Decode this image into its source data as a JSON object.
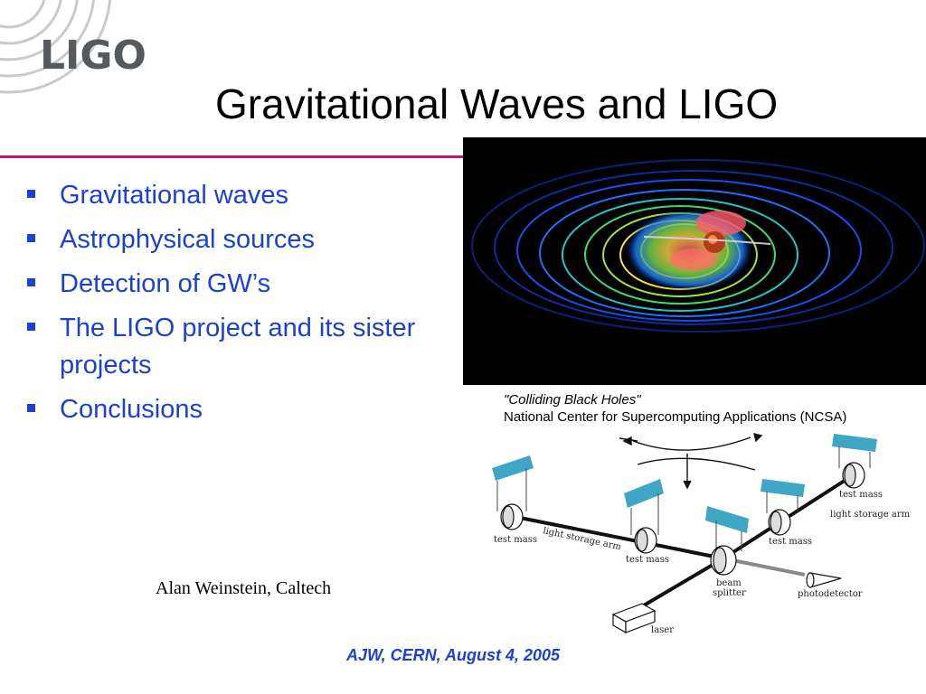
{
  "logo": {
    "text": "LIGO",
    "icon": "ligo-logo-arcs"
  },
  "title": "Gravitational Waves and LIGO",
  "bullets": [
    "Gravitational waves",
    "Astrophysical sources",
    "Detection of GW’s",
    "The LIGO project and its sister projects",
    "Conclusions"
  ],
  "image_caption": {
    "line1": "\"Colliding Black Holes\"",
    "line2": "National Center for Supercomputing Applications (NCSA)"
  },
  "diagram_labels": {
    "test_mass": "test mass",
    "light_storage_arm": "light storage arm",
    "beam": "beam",
    "splitter": "splitter",
    "photodetector": "photodetector",
    "laser": "laser"
  },
  "author": "Alan Weinstein, Caltech",
  "footer": "AJW, CERN, August 4, 2005",
  "colors": {
    "accent_blue": "#1c3fd6",
    "divider_magenta": "#c0157a",
    "mirror_teal": "#3fa6c6"
  }
}
